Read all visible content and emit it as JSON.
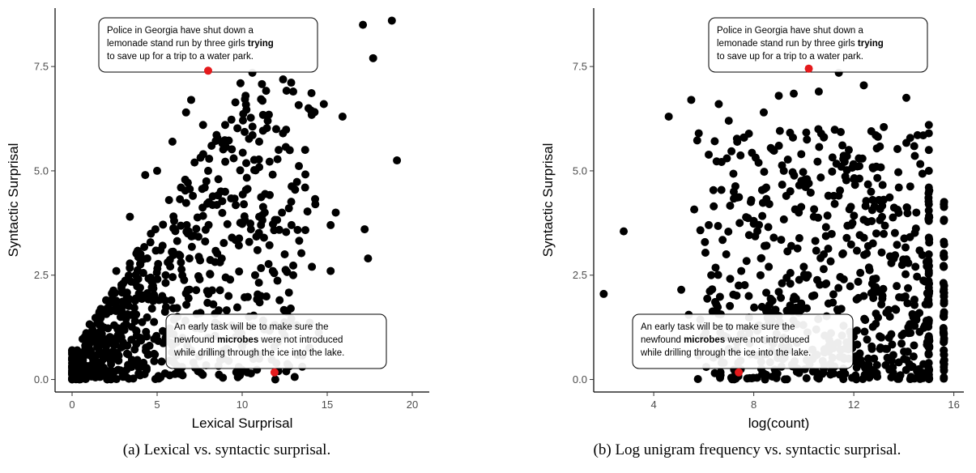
{
  "chart_data": [
    {
      "type": "scatter",
      "panel": "a",
      "xlabel": "Lexical Surprisal",
      "ylabel": "Syntactic Surprisal",
      "xlim": [
        -1,
        21
      ],
      "ylim": [
        -0.3,
        8.9
      ],
      "xticks": [
        0,
        5,
        10,
        15,
        20
      ],
      "xtick_labels": [
        "0",
        "5",
        "10",
        "15",
        "20"
      ],
      "yticks": [
        0,
        2.5,
        5,
        7.5
      ],
      "ytick_labels": [
        "0.0",
        "2.5",
        "5.0",
        "7.5"
      ],
      "grid": false,
      "legend": "none",
      "point_color": "#000000",
      "highlight_color": "#e41a1c",
      "caption": "(a) Lexical vs. syntactic surprisal.",
      "highlights": [
        {
          "x": 8.0,
          "y": 7.4
        },
        {
          "x": 11.9,
          "y": 0.17
        }
      ],
      "annotations": [
        {
          "lines": [
            [
              "Police in Georgia have shut down a"
            ],
            [
              "lemonade stand run by three girls ",
              "trying"
            ],
            [
              "to save up for a trip to a water park."
            ]
          ],
          "bold_word": "trying",
          "anchor": "top"
        },
        {
          "lines": [
            [
              "An early task will be to make sure the"
            ],
            [
              "newfound ",
              "microbes",
              " were not introduced"
            ],
            [
              "while drilling through the ice into the lake."
            ]
          ],
          "bold_word": "microbes",
          "anchor": "bottom"
        }
      ],
      "extra_points": [
        [
          1.5,
          0.6
        ],
        [
          2.2,
          1.0
        ],
        [
          0.9,
          0.3
        ],
        [
          3.1,
          1.8
        ],
        [
          4.0,
          2.2
        ],
        [
          5.2,
          3.1
        ],
        [
          6.0,
          3.8
        ],
        [
          7.1,
          4.4
        ],
        [
          8.2,
          5.6
        ],
        [
          9.0,
          6.1
        ],
        [
          10.2,
          6.8
        ],
        [
          11.5,
          6.2
        ],
        [
          12.4,
          5.9
        ],
        [
          13.9,
          6.5
        ],
        [
          14.8,
          6.6
        ],
        [
          15.9,
          6.3
        ],
        [
          17.1,
          8.5
        ],
        [
          18.8,
          8.6
        ],
        [
          17.7,
          7.7
        ],
        [
          19.1,
          5.25
        ],
        [
          17.2,
          3.6
        ],
        [
          17.4,
          2.9
        ],
        [
          15.5,
          4.0
        ],
        [
          15.2,
          3.7
        ],
        [
          14.3,
          4.2
        ],
        [
          13.7,
          4.6
        ],
        [
          12.9,
          3.7
        ],
        [
          12.5,
          3.0
        ],
        [
          14.1,
          2.7
        ],
        [
          15.2,
          2.6
        ],
        [
          13.0,
          2.5
        ],
        [
          11.1,
          2.0
        ],
        [
          10.4,
          1.5
        ],
        [
          9.7,
          1.2
        ],
        [
          8.9,
          0.5
        ],
        [
          7.4,
          0.2
        ],
        [
          6.5,
          0.1
        ],
        [
          5.2,
          0.05
        ],
        [
          4.2,
          0.4
        ],
        [
          3.0,
          0.8
        ],
        [
          2.1,
          0.2
        ],
        [
          1.0,
          0.1
        ],
        [
          0.1,
          0.02
        ],
        [
          0.4,
          0.15
        ],
        [
          0.6,
          0.5
        ],
        [
          0.3,
          0.7
        ],
        [
          1.2,
          1.2
        ],
        [
          2.6,
          2.6
        ],
        [
          3.4,
          3.9
        ],
        [
          4.3,
          4.9
        ],
        [
          5.0,
          5.0
        ],
        [
          5.9,
          5.7
        ],
        [
          6.7,
          6.4
        ],
        [
          7.7,
          6.1
        ],
        [
          7.0,
          6.7
        ],
        [
          9.9,
          7.1
        ],
        [
          10.6,
          7.35
        ],
        [
          13.0,
          6.9
        ],
        [
          12.0,
          6.0
        ],
        [
          11.0,
          5.7
        ],
        [
          9.5,
          5.3
        ],
        [
          8.6,
          4.8
        ],
        [
          7.8,
          4.6
        ],
        [
          6.8,
          3.5
        ],
        [
          5.5,
          2.5
        ],
        [
          4.7,
          1.7
        ],
        [
          3.7,
          1.4
        ],
        [
          2.8,
          1.1
        ],
        [
          1.8,
          0.9
        ],
        [
          6.2,
          1.5
        ],
        [
          7.5,
          2.4
        ],
        [
          8.8,
          2.9
        ],
        [
          9.4,
          3.4
        ],
        [
          10.9,
          3.1
        ],
        [
          11.8,
          2.6
        ],
        [
          12.2,
          1.9
        ],
        [
          11.3,
          1.2
        ],
        [
          10.0,
          0.8
        ],
        [
          8.0,
          1.0
        ],
        [
          7.0,
          0.7
        ],
        [
          6.0,
          0.4
        ],
        [
          5.5,
          1.0
        ],
        [
          4.5,
          0.6
        ],
        [
          3.5,
          0.3
        ],
        [
          2.5,
          0.5
        ],
        [
          1.6,
          1.6
        ],
        [
          2.0,
          1.9
        ],
        [
          3.0,
          2.3
        ],
        [
          4.1,
          2.9
        ],
        [
          4.9,
          3.6
        ],
        [
          5.7,
          4.3
        ],
        [
          6.4,
          4.6
        ],
        [
          7.2,
          5.2
        ],
        [
          8.0,
          5.0
        ],
        [
          9.0,
          4.5
        ],
        [
          10.1,
          4.2
        ],
        [
          11.0,
          3.9
        ],
        [
          9.2,
          2.0
        ],
        [
          8.3,
          1.8
        ],
        [
          9.8,
          0.3
        ],
        [
          11.0,
          0.5
        ],
        [
          12.1,
          0.9
        ],
        [
          13.2,
          1.3
        ],
        [
          6.9,
          2.9
        ],
        [
          5.3,
          2.0
        ],
        [
          4.0,
          1.0
        ],
        [
          3.3,
          0.6
        ]
      ]
    },
    {
      "type": "scatter",
      "panel": "b",
      "xlabel": "log(count)",
      "ylabel": "Syntactic Surprisal",
      "xlim": [
        1.6,
        16.4
      ],
      "ylim": [
        -0.3,
        8.9
      ],
      "xticks": [
        4,
        8,
        12,
        16
      ],
      "xtick_labels": [
        "4",
        "8",
        "12",
        "16"
      ],
      "yticks": [
        0,
        2.5,
        5,
        7.5
      ],
      "ytick_labels": [
        "0.0",
        "2.5",
        "5.0",
        "7.5"
      ],
      "grid": false,
      "legend": "none",
      "point_color": "#000000",
      "highlight_color": "#e41a1c",
      "caption": "(b) Log unigram frequency vs. syntactic surprisal.",
      "highlights": [
        {
          "x": 10.2,
          "y": 7.45
        },
        {
          "x": 7.4,
          "y": 0.17
        }
      ],
      "annotations": [
        {
          "lines": [
            [
              "Police in Georgia have shut down a"
            ],
            [
              "lemonade stand run by three girls ",
              "trying"
            ],
            [
              "to save up for a trip to a water park."
            ]
          ],
          "bold_word": "trying",
          "anchor": "top"
        },
        {
          "lines": [
            [
              "An early task will be to make sure the"
            ],
            [
              "newfound ",
              "microbes",
              " were not introduced"
            ],
            [
              "while drilling through the ice into the lake."
            ]
          ],
          "bold_word": "microbes",
          "anchor": "bottom"
        }
      ],
      "extra_points": [
        [
          2.0,
          2.05
        ],
        [
          2.8,
          3.55
        ],
        [
          4.6,
          6.3
        ],
        [
          5.5,
          6.7
        ],
        [
          6.6,
          6.6
        ],
        [
          5.8,
          5.9
        ],
        [
          7.0,
          6.2
        ],
        [
          7.6,
          5.8
        ],
        [
          8.4,
          6.4
        ],
        [
          9.0,
          6.8
        ],
        [
          9.6,
          6.85
        ],
        [
          10.6,
          6.9
        ],
        [
          11.4,
          7.35
        ],
        [
          12.4,
          7.05
        ],
        [
          14.1,
          6.75
        ],
        [
          13.2,
          6.05
        ],
        [
          12.7,
          5.95
        ],
        [
          11.8,
          5.5
        ],
        [
          10.8,
          5.8
        ],
        [
          9.9,
          5.4
        ],
        [
          9.2,
          5.0
        ],
        [
          8.5,
          4.6
        ],
        [
          7.9,
          4.3
        ],
        [
          7.2,
          4.5
        ],
        [
          6.4,
          4.15
        ],
        [
          6.2,
          3.7
        ],
        [
          5.1,
          2.15
        ],
        [
          5.4,
          1.55
        ],
        [
          6.0,
          1.0
        ],
        [
          6.1,
          0.3
        ],
        [
          7.8,
          2.0
        ],
        [
          8.6,
          2.7
        ],
        [
          9.5,
          3.2
        ],
        [
          10.4,
          3.9
        ],
        [
          11.2,
          4.4
        ],
        [
          12.0,
          4.8
        ],
        [
          12.9,
          5.1
        ],
        [
          13.8,
          4.6
        ],
        [
          14.5,
          4.0
        ],
        [
          15.0,
          6.1
        ],
        [
          15.0,
          5.9
        ],
        [
          15.0,
          5.5
        ],
        [
          15.0,
          5.0
        ],
        [
          15.0,
          4.6
        ],
        [
          15.0,
          4.2
        ],
        [
          15.0,
          3.8
        ],
        [
          15.0,
          3.4
        ],
        [
          15.0,
          3.0
        ],
        [
          15.0,
          2.6
        ],
        [
          15.0,
          2.2
        ],
        [
          15.0,
          1.8
        ],
        [
          15.0,
          1.4
        ],
        [
          15.0,
          1.0
        ],
        [
          15.0,
          0.6
        ],
        [
          15.0,
          0.2
        ],
        [
          15.6,
          4.2
        ],
        [
          15.6,
          3.8
        ],
        [
          15.6,
          3.3
        ],
        [
          15.6,
          2.7
        ],
        [
          15.6,
          2.0
        ],
        [
          15.6,
          1.5
        ],
        [
          15.6,
          1.1
        ],
        [
          15.6,
          0.9
        ],
        [
          15.6,
          0.6
        ],
        [
          15.6,
          0.3
        ],
        [
          15.6,
          0.05
        ],
        [
          14.3,
          0.3
        ],
        [
          13.5,
          0.05
        ],
        [
          12.6,
          0.2
        ],
        [
          11.8,
          0.5
        ],
        [
          11.0,
          0.8
        ],
        [
          10.5,
          1.2
        ],
        [
          9.8,
          1.6
        ],
        [
          9.0,
          2.1
        ],
        [
          8.2,
          1.3
        ],
        [
          7.0,
          0.7
        ],
        [
          6.5,
          1.8
        ],
        [
          7.5,
          2.6
        ],
        [
          8.8,
          3.4
        ],
        [
          9.8,
          4.0
        ],
        [
          10.8,
          3.0
        ],
        [
          11.6,
          2.4
        ],
        [
          12.4,
          2.0
        ],
        [
          13.3,
          1.6
        ],
        [
          14.0,
          1.1
        ],
        [
          13.6,
          2.9
        ],
        [
          12.9,
          3.5
        ],
        [
          11.9,
          3.7
        ],
        [
          10.9,
          2.3
        ],
        [
          10.0,
          2.7
        ],
        [
          9.2,
          1.0
        ],
        [
          8.4,
          0.6
        ],
        [
          7.6,
          1.0
        ],
        [
          6.8,
          0.4
        ],
        [
          6.3,
          2.5
        ],
        [
          6.9,
          3.0
        ],
        [
          8.0,
          3.8
        ],
        [
          9.3,
          4.4
        ],
        [
          10.2,
          4.7
        ],
        [
          11.5,
          5.1
        ],
        [
          12.2,
          5.3
        ],
        [
          13.0,
          4.3
        ]
      ]
    }
  ]
}
